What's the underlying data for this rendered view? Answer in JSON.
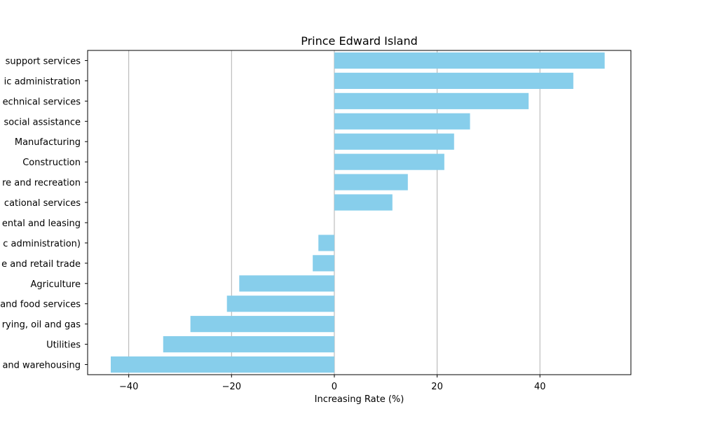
{
  "chart_data": {
    "type": "bar",
    "orientation": "horizontal",
    "title": "Prince Edward Island",
    "xlabel": "Increasing Rate (%)",
    "ylabel": "",
    "xlim": [
      -48,
      57.7
    ],
    "xticks": [
      -40,
      -20,
      0,
      20,
      40
    ],
    "xtick_labels": [
      "−40",
      "−20",
      "0",
      "20",
      "40"
    ],
    "grid": "vertical",
    "bar_color": "#87ceeb",
    "categories": [
      "Administrative and support services",
      "Public administration",
      "Professional, scientific and technical services",
      "Health care and social assistance",
      "Manufacturing",
      "Construction",
      "Information, culture and recreation",
      "Educational services",
      "Finance, insurance, real estate, rental and leasing",
      "Other services (except public administration)",
      "Wholesale and retail trade",
      "Agriculture",
      "Accommodation and food services",
      "Forestry, fishing, mining, quarrying, oil and gas",
      "Utilities",
      "Transportation and warehousing"
    ],
    "visible_labels": [
      "support services",
      "ic administration",
      "echnical services",
      "social assistance",
      "Manufacturing",
      "Construction",
      "re and recreation",
      "cational services",
      "ental and leasing",
      "c administration)",
      "e and retail trade",
      "Agriculture",
      "and food services",
      "rying, oil and gas",
      "Utilities",
      "and warehousing"
    ],
    "values": [
      52.6,
      46.5,
      37.8,
      26.4,
      23.3,
      21.4,
      14.3,
      11.3,
      0.0,
      -3.1,
      -4.2,
      -18.5,
      -20.9,
      -28.0,
      -33.3,
      -43.5
    ]
  }
}
